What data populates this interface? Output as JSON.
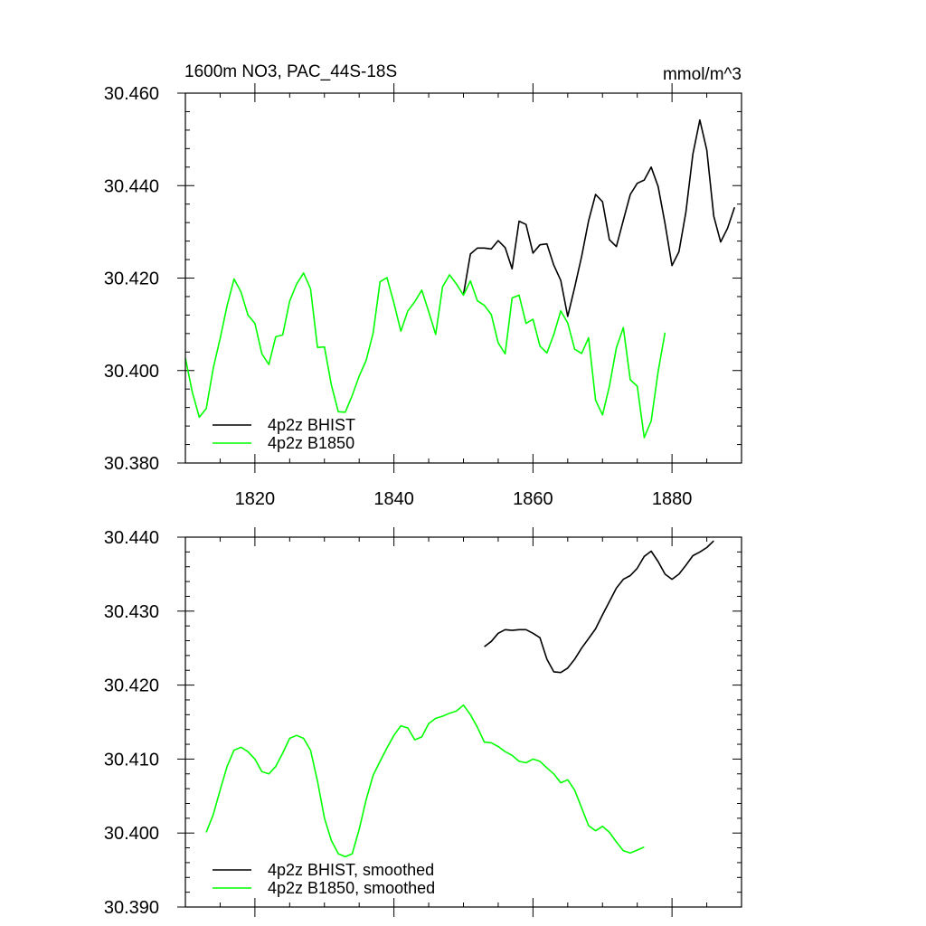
{
  "chart_data": [
    {
      "type": "line",
      "title": "1600m NO3, PAC_44S-18S",
      "units": "mmol/m^3",
      "xlim": [
        1810,
        1890
      ],
      "ylim": [
        30.38,
        30.46
      ],
      "yticks": [
        "30.380",
        "30.400",
        "30.420",
        "30.440",
        "30.460"
      ],
      "xticks": [
        "1820",
        "1840",
        "1860",
        "1880"
      ],
      "legend_position": "bottom-left",
      "series": [
        {
          "name": "4p2z BHIST",
          "color": "#000000",
          "x": [
            1850,
            1851,
            1852,
            1853,
            1854,
            1855,
            1856,
            1857,
            1858,
            1859,
            1860,
            1861,
            1862,
            1863,
            1864,
            1865,
            1866,
            1867,
            1868,
            1869,
            1870,
            1871,
            1872,
            1873,
            1874,
            1875,
            1876,
            1877,
            1878,
            1879,
            1880,
            1881,
            1882,
            1883,
            1884,
            1885,
            1886,
            1887,
            1888,
            1889
          ],
          "values": [
            30.4164,
            30.4252,
            30.4265,
            30.4265,
            30.4263,
            30.4281,
            30.4266,
            30.422,
            30.4323,
            30.4316,
            30.4254,
            30.4272,
            30.4274,
            30.4228,
            30.4195,
            30.4117,
            30.418,
            30.4247,
            30.4324,
            30.4381,
            30.4365,
            30.4283,
            30.4268,
            30.4325,
            30.4381,
            30.4405,
            30.4412,
            30.444,
            30.4398,
            30.4318,
            30.4227,
            30.4257,
            30.4343,
            30.4468,
            30.4542,
            30.4477,
            30.4334,
            30.4278,
            30.4308,
            30.4353
          ]
        },
        {
          "name": "4p2z B1850",
          "color": "#00ff00",
          "x": [
            1810,
            1811,
            1812,
            1813,
            1814,
            1815,
            1816,
            1817,
            1818,
            1819,
            1820,
            1821,
            1822,
            1823,
            1824,
            1825,
            1826,
            1827,
            1828,
            1829,
            1830,
            1831,
            1832,
            1833,
            1834,
            1835,
            1836,
            1837,
            1838,
            1839,
            1840,
            1841,
            1842,
            1843,
            1844,
            1845,
            1846,
            1847,
            1848,
            1849,
            1850,
            1851,
            1852,
            1853,
            1854,
            1855,
            1856,
            1857,
            1858,
            1859,
            1860,
            1861,
            1862,
            1863,
            1864,
            1865,
            1866,
            1867,
            1868,
            1869,
            1870,
            1871,
            1872,
            1873,
            1874,
            1875,
            1876,
            1877,
            1878,
            1879
          ],
          "values": [
            30.4027,
            30.3953,
            30.3899,
            30.3918,
            30.4005,
            30.4069,
            30.414,
            30.4198,
            30.417,
            30.412,
            30.4102,
            30.4036,
            30.4013,
            30.4073,
            30.4077,
            30.415,
            30.4187,
            30.4211,
            30.4177,
            30.405,
            30.4051,
            30.3969,
            30.3911,
            30.391,
            30.3946,
            30.3988,
            30.4022,
            30.4081,
            30.4192,
            30.4201,
            30.4146,
            30.4085,
            30.4129,
            30.4149,
            30.4174,
            30.4127,
            30.4078,
            30.4181,
            30.4207,
            30.4187,
            30.4163,
            30.4194,
            30.4151,
            30.4141,
            30.4121,
            30.406,
            30.4036,
            30.4157,
            30.4163,
            30.4102,
            30.4111,
            30.4053,
            30.4038,
            30.4078,
            30.4129,
            30.4103,
            30.4046,
            30.4037,
            30.4071,
            30.3936,
            30.3904,
            30.3966,
            30.4049,
            30.4093,
            30.398,
            30.3966,
            30.3855,
            30.3891,
            30.3998,
            30.4082
          ]
        }
      ]
    },
    {
      "type": "line",
      "xlim": [
        1810,
        1890
      ],
      "ylim": [
        30.39,
        30.44
      ],
      "yticks": [
        "30.390",
        "30.400",
        "30.410",
        "30.420",
        "30.430",
        "30.440"
      ],
      "legend_position": "bottom-left",
      "series": [
        {
          "name": "4p2z BHIST, smoothed",
          "color": "#000000",
          "x": [
            1853,
            1854,
            1855,
            1856,
            1857,
            1858,
            1859,
            1860,
            1861,
            1862,
            1863,
            1864,
            1865,
            1866,
            1867,
            1868,
            1869,
            1870,
            1871,
            1872,
            1873,
            1874,
            1875,
            1876,
            1877,
            1878,
            1879,
            1880,
            1881,
            1882,
            1883,
            1884,
            1885,
            1886
          ],
          "values": [
            30.4252,
            30.4259,
            30.427,
            30.4275,
            30.4274,
            30.4275,
            30.4275,
            30.427,
            30.4264,
            30.4235,
            30.4218,
            30.4217,
            30.4223,
            30.4235,
            30.425,
            30.4263,
            30.4276,
            30.4295,
            30.4313,
            30.4331,
            30.4343,
            30.4348,
            30.4358,
            30.4374,
            30.4381,
            30.4367,
            30.435,
            30.4343,
            30.435,
            30.4362,
            30.4375,
            30.438,
            30.4386,
            30.4395
          ]
        },
        {
          "name": "4p2z B1850, smoothed",
          "color": "#00ff00",
          "x": [
            1813,
            1814,
            1815,
            1816,
            1817,
            1818,
            1819,
            1820,
            1821,
            1822,
            1823,
            1824,
            1825,
            1826,
            1827,
            1828,
            1829,
            1830,
            1831,
            1832,
            1833,
            1834,
            1835,
            1836,
            1837,
            1838,
            1839,
            1840,
            1841,
            1842,
            1843,
            1844,
            1845,
            1846,
            1847,
            1848,
            1849,
            1850,
            1851,
            1852,
            1853,
            1854,
            1855,
            1856,
            1857,
            1858,
            1859,
            1860,
            1861,
            1862,
            1863,
            1864,
            1865,
            1866,
            1867,
            1868,
            1869,
            1870,
            1871,
            1872,
            1873,
            1874,
            1875,
            1876
          ],
          "values": [
            30.4001,
            30.4025,
            30.4058,
            30.409,
            30.4112,
            30.4116,
            30.411,
            30.41,
            30.4083,
            30.408,
            30.409,
            30.4108,
            30.4128,
            30.4132,
            30.4128,
            30.4112,
            30.407,
            30.402,
            30.399,
            30.3972,
            30.3968,
            30.3972,
            30.4005,
            30.4045,
            30.4078,
            30.4097,
            30.4115,
            30.4132,
            30.4145,
            30.4142,
            30.4126,
            30.413,
            30.4148,
            30.4155,
            30.4158,
            30.4162,
            30.4165,
            30.4173,
            30.416,
            30.4143,
            30.4123,
            30.4122,
            30.4117,
            30.411,
            30.4105,
            30.4097,
            30.4095,
            30.41,
            30.4097,
            30.4088,
            30.408,
            30.4068,
            30.4072,
            30.4058,
            30.4034,
            30.401,
            30.4003,
            30.4009,
            30.4001,
            30.3988,
            30.3976,
            30.3973,
            30.3977,
            30.3981
          ]
        }
      ]
    }
  ]
}
